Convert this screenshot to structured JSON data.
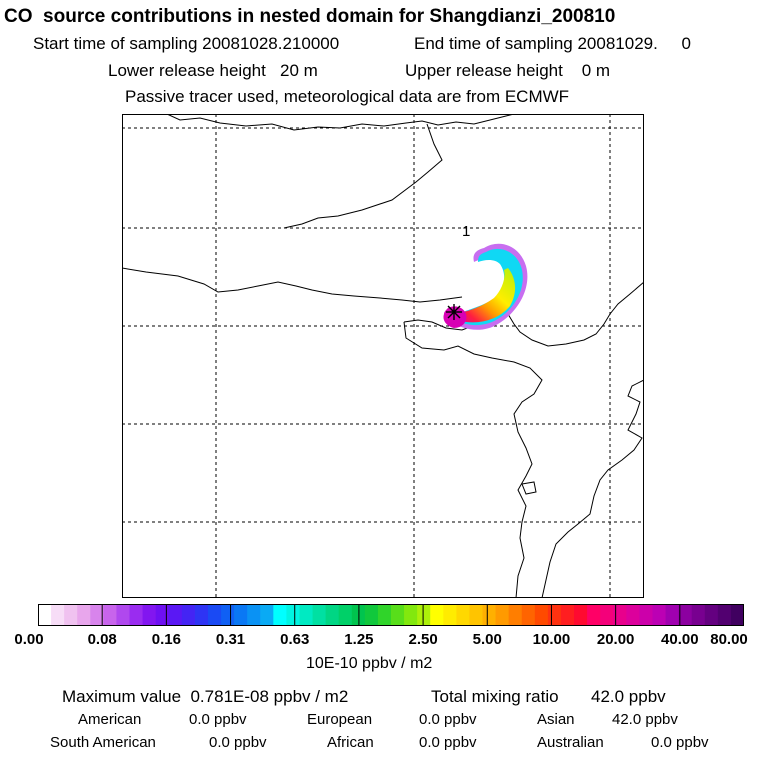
{
  "header": {
    "title": "CO  source contributions in nested domain for Shangdianzi_200810",
    "start_label": "Start time of sampling 20081028.210000",
    "end_label": "End time of sampling 20081029.     0",
    "lower_release": "Lower release height   20 m",
    "upper_release": "Upper release height    0 m",
    "tracer_note": "Passive tracer used, meteorological data are from ECMWF"
  },
  "map": {
    "marker_label": "1",
    "station_icon": "star-marker-icon",
    "colors": {
      "coast": "#000000",
      "grid": "#000000",
      "frame": "#000000"
    }
  },
  "colorbar": {
    "tick_labels": [
      "0.00",
      "0.08",
      "0.16",
      "0.31",
      "0.63",
      "1.25",
      "2.50",
      "5.00",
      "10.00",
      "20.00",
      "40.00",
      "80.00"
    ],
    "units": "10E-10 ppbv / m2",
    "colors": [
      "#ffffff",
      "#f7ddf7",
      "#f0c2f0",
      "#e8a6ec",
      "#d884ec",
      "#c864ec",
      "#b048ee",
      "#9a2cf0",
      "#8216f0",
      "#6e10f2",
      "#5a18f4",
      "#4424f4",
      "#2e34f4",
      "#1a4af4",
      "#1060f4",
      "#0a78f4",
      "#0a92f4",
      "#0aaaf4",
      "#00ffff",
      "#00f4e2",
      "#00eac2",
      "#00e0a2",
      "#00d684",
      "#00d068",
      "#00c44e",
      "#10c83c",
      "#30d42a",
      "#58de1a",
      "#82e80e",
      "#acf00a",
      "#ffff00",
      "#ffec00",
      "#ffd800",
      "#ffc400",
      "#ffb000",
      "#ff9a00",
      "#ff7e00",
      "#ff6400",
      "#ff4a00",
      "#ff3210",
      "#ff1e20",
      "#ff0a30",
      "#ff0066",
      "#f4007a",
      "#e8008c",
      "#dc009c",
      "#cc00aa",
      "#bc00b4",
      "#a000b0",
      "#8c00a0",
      "#780090",
      "#640080",
      "#520070",
      "#400060"
    ]
  },
  "footer": {
    "max_label": "Maximum value  0.781E-08 ppbv / m2",
    "total_label": "Total mixing ratio",
    "total_value": "42.0 ppbv",
    "regions": [
      {
        "name": "American",
        "value": "0.0 ppbv"
      },
      {
        "name": "European",
        "value": "0.0 ppbv"
      },
      {
        "name": "Asian",
        "value": "42.0 ppbv"
      },
      {
        "name": "South American",
        "value": "0.0 ppbv"
      },
      {
        "name": "African",
        "value": "0.0 ppbv"
      },
      {
        "name": "Australian",
        "value": "0.0 ppbv"
      }
    ]
  }
}
